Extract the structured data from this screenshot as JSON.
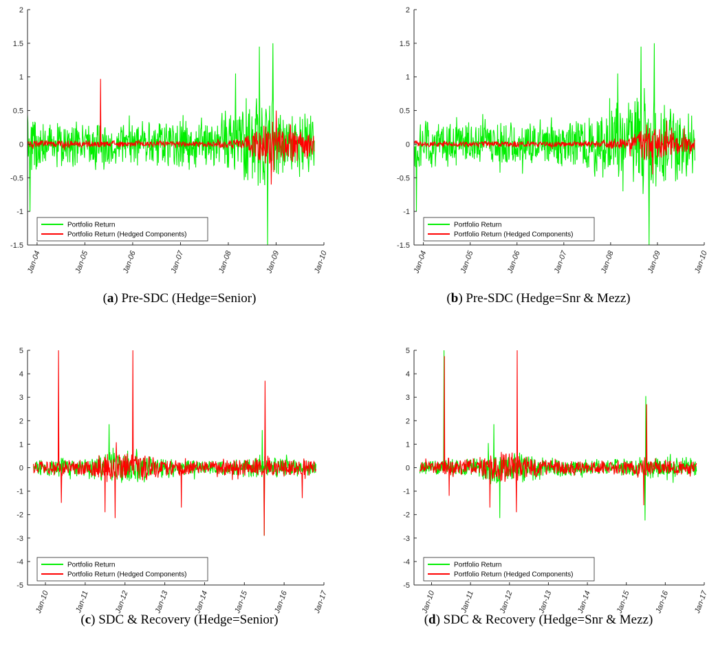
{
  "colors": {
    "portfolio": "#00ee00",
    "hedged": "#ff0000",
    "axis": "#262626"
  },
  "chart_data": [
    {
      "id": "a",
      "type": "line",
      "caption_letter": "a",
      "caption_text": " Pre-SDC (Hedge=Senior)",
      "ylim": [
        -1.5,
        2
      ],
      "yticks": [
        -1.5,
        -1,
        -0.5,
        0,
        0.5,
        1,
        1.5,
        2
      ],
      "ytick_labels": [
        "-1.5",
        "-1",
        "-0.5",
        "0",
        "0.5",
        "1",
        "1.5",
        "2"
      ],
      "xlim": [
        2003.8,
        2010.0
      ],
      "xticks": [
        2004,
        2005,
        2006,
        2007,
        2008,
        2009,
        2010
      ],
      "xtick_labels": [
        "Jan-04",
        "Jan-05",
        "Jan-06",
        "Jan-07",
        "Jan-08",
        "Jan-09",
        "Jan-10"
      ],
      "legend": [
        "Portfolio Return",
        "Portfolio Return (Hedged Components)"
      ],
      "legend_position": "bottom-left",
      "series": [
        {
          "name": "Portfolio Return",
          "x_start": 2003.8,
          "x_end": 2009.8,
          "amp_env": [
            [
              2003.8,
              0.5
            ],
            [
              2004.3,
              0.35
            ],
            [
              2006,
              0.35
            ],
            [
              2007.2,
              0.4
            ],
            [
              2008,
              0.55
            ],
            [
              2008.7,
              0.8
            ],
            [
              2009.3,
              0.6
            ],
            [
              2009.8,
              0.45
            ]
          ],
          "spikes": [
            [
              2008.82,
              -1.5
            ],
            [
              2008.65,
              1.45
            ],
            [
              2008.93,
              1.5
            ],
            [
              2003.85,
              -1.0
            ],
            [
              2008.15,
              1.05
            ]
          ]
        },
        {
          "name": "Portfolio Return (Hedged Components)",
          "x_start": 2003.8,
          "x_end": 2009.8,
          "amp_env": [
            [
              2003.8,
              0.06
            ],
            [
              2007.5,
              0.05
            ],
            [
              2008.3,
              0.1
            ],
            [
              2008.7,
              0.35
            ],
            [
              2009.1,
              0.35
            ],
            [
              2009.8,
              0.2
            ]
          ],
          "spikes": [
            [
              2005.33,
              0.97
            ],
            [
              2008.9,
              -0.6
            ],
            [
              2009.0,
              0.5
            ]
          ]
        }
      ]
    },
    {
      "id": "b",
      "type": "line",
      "caption_letter": "b",
      "caption_text": " Pre-SDC (Hedge=Snr & Mezz)",
      "ylim": [
        -1.5,
        2
      ],
      "yticks": [
        -1.5,
        -1,
        -0.5,
        0,
        0.5,
        1,
        1.5,
        2
      ],
      "ytick_labels": [
        "-1.5",
        "-1",
        "-0.5",
        "0",
        "0.5",
        "1",
        "1.5",
        "2"
      ],
      "xlim": [
        2003.8,
        2010.0
      ],
      "xticks": [
        2004,
        2005,
        2006,
        2007,
        2008,
        2009,
        2010
      ],
      "xtick_labels": [
        "Jan-04",
        "Jan-05",
        "Jan-06",
        "Jan-07",
        "Jan-08",
        "Jan-09",
        "Jan-10"
      ],
      "legend": [
        "Portfolio Return",
        "Portfolio Return (Hedged Components)"
      ],
      "legend_position": "bottom-left",
      "series": [
        {
          "name": "Portfolio Return",
          "x_start": 2003.8,
          "x_end": 2009.8,
          "amp_env": [
            [
              2003.8,
              0.5
            ],
            [
              2004.3,
              0.35
            ],
            [
              2006,
              0.35
            ],
            [
              2007.2,
              0.4
            ],
            [
              2008,
              0.55
            ],
            [
              2008.7,
              0.8
            ],
            [
              2009.3,
              0.6
            ],
            [
              2009.8,
              0.45
            ]
          ],
          "spikes": [
            [
              2008.82,
              -1.5
            ],
            [
              2008.65,
              1.45
            ],
            [
              2008.93,
              1.5
            ],
            [
              2003.85,
              -1.0
            ],
            [
              2008.15,
              1.05
            ]
          ]
        },
        {
          "name": "Portfolio Return (Hedged Components)",
          "x_start": 2003.8,
          "x_end": 2009.8,
          "amp_env": [
            [
              2003.8,
              0.05
            ],
            [
              2007.5,
              0.05
            ],
            [
              2008.3,
              0.08
            ],
            [
              2008.7,
              0.25
            ],
            [
              2009.1,
              0.25
            ],
            [
              2009.8,
              0.15
            ]
          ],
          "spikes": [
            [
              2008.9,
              -0.45
            ],
            [
              2009.2,
              0.35
            ]
          ]
        }
      ]
    },
    {
      "id": "c",
      "type": "line",
      "caption_letter": "c",
      "caption_text": " SDC & Recovery (Hedge=Senior)",
      "ylim": [
        -5,
        5
      ],
      "yticks": [
        -5,
        -4,
        -3,
        -2,
        -1,
        0,
        1,
        2,
        3,
        4,
        5
      ],
      "ytick_labels": [
        "-5",
        "-4",
        "-3",
        "-2",
        "-1",
        "0",
        "1",
        "2",
        "3",
        "4",
        "5"
      ],
      "xlim": [
        2009.55,
        2017.0
      ],
      "xticks": [
        2010,
        2011,
        2012,
        2013,
        2014,
        2015,
        2016,
        2017
      ],
      "xtick_labels": [
        "Jan-10",
        "Jan-11",
        "Jan-12",
        "Jan-13",
        "Jan-14",
        "Jan-15",
        "Jan-16",
        "Jan-17"
      ],
      "legend": [
        "Portfolio Return",
        "Portfolio Return (Hedged Components)"
      ],
      "legend_position": "bottom-left",
      "series": [
        {
          "name": "Portfolio Return",
          "x_start": 2009.7,
          "x_end": 2016.8,
          "amp_env": [
            [
              2009.7,
              0.35
            ],
            [
              2011,
              0.45
            ],
            [
              2011.6,
              0.8
            ],
            [
              2012.3,
              0.7
            ],
            [
              2013,
              0.45
            ],
            [
              2014,
              0.35
            ],
            [
              2015.3,
              0.5
            ],
            [
              2016.8,
              0.4
            ]
          ],
          "spikes": [
            [
              2011.6,
              1.85
            ],
            [
              2015.5,
              -2.9
            ],
            [
              2015.45,
              1.6
            ]
          ]
        },
        {
          "name": "Portfolio Return (Hedged Components)",
          "x_start": 2009.7,
          "x_end": 2016.8,
          "amp_env": [
            [
              2009.7,
              0.3
            ],
            [
              2011,
              0.4
            ],
            [
              2011.6,
              0.75
            ],
            [
              2012.3,
              0.65
            ],
            [
              2013,
              0.4
            ],
            [
              2014,
              0.3
            ],
            [
              2015.3,
              0.45
            ],
            [
              2016.8,
              0.35
            ]
          ],
          "spikes": [
            [
              2010.33,
              5
            ],
            [
              2012.2,
              5
            ],
            [
              2015.52,
              3.7
            ],
            [
              2015.5,
              -2.9
            ],
            [
              2011.75,
              -2.15
            ],
            [
              2011.5,
              -1.9
            ],
            [
              2013.42,
              -1.7
            ],
            [
              2010.4,
              -1.5
            ],
            [
              2016.45,
              -1.3
            ]
          ]
        }
      ]
    },
    {
      "id": "d",
      "type": "line",
      "caption_letter": "d",
      "caption_text": " SDC & Recovery (Hedge=Snr & Mezz)",
      "ylim": [
        -5,
        5
      ],
      "yticks": [
        -5,
        -4,
        -3,
        -2,
        -1,
        0,
        1,
        2,
        3,
        4,
        5
      ],
      "ytick_labels": [
        "-5",
        "-4",
        "-3",
        "-2",
        "-1",
        "0",
        "1",
        "2",
        "3",
        "4",
        "5"
      ],
      "xlim": [
        2009.55,
        2017.0
      ],
      "xticks": [
        2010,
        2011,
        2012,
        2013,
        2014,
        2015,
        2016,
        2017
      ],
      "xtick_labels": [
        "Jan-10",
        "Jan-11",
        "Jan-12",
        "Jan-13",
        "Jan-14",
        "Jan-15",
        "Jan-16",
        "Jan-17"
      ],
      "legend": [
        "Portfolio Return",
        "Portfolio Return (Hedged Components)"
      ],
      "legend_position": "bottom-left",
      "series": [
        {
          "name": "Portfolio Return",
          "x_start": 2009.7,
          "x_end": 2016.8,
          "amp_env": [
            [
              2009.7,
              0.35
            ],
            [
              2011,
              0.45
            ],
            [
              2011.6,
              0.8
            ],
            [
              2012.3,
              0.7
            ],
            [
              2013,
              0.45
            ],
            [
              2014,
              0.35
            ],
            [
              2015.3,
              0.5
            ],
            [
              2016.8,
              0.4
            ]
          ],
          "spikes": [
            [
              2010.32,
              5
            ],
            [
              2011.6,
              1.85
            ],
            [
              2015.5,
              3.05
            ],
            [
              2015.48,
              -2.25
            ],
            [
              2011.75,
              -2.15
            ]
          ]
        },
        {
          "name": "Portfolio Return (Hedged Components)",
          "x_start": 2009.7,
          "x_end": 2016.8,
          "amp_env": [
            [
              2009.7,
              0.28
            ],
            [
              2011,
              0.38
            ],
            [
              2011.6,
              0.7
            ],
            [
              2012.3,
              0.6
            ],
            [
              2013,
              0.38
            ],
            [
              2014,
              0.28
            ],
            [
              2015.3,
              0.4
            ],
            [
              2016.8,
              0.3
            ]
          ],
          "spikes": [
            [
              2010.33,
              4.75
            ],
            [
              2012.2,
              5
            ],
            [
              2015.52,
              2.7
            ],
            [
              2012.18,
              -1.9
            ],
            [
              2010.45,
              -1.2
            ],
            [
              2011.5,
              -1.7
            ],
            [
              2015.45,
              -1.6
            ]
          ]
        }
      ]
    }
  ]
}
